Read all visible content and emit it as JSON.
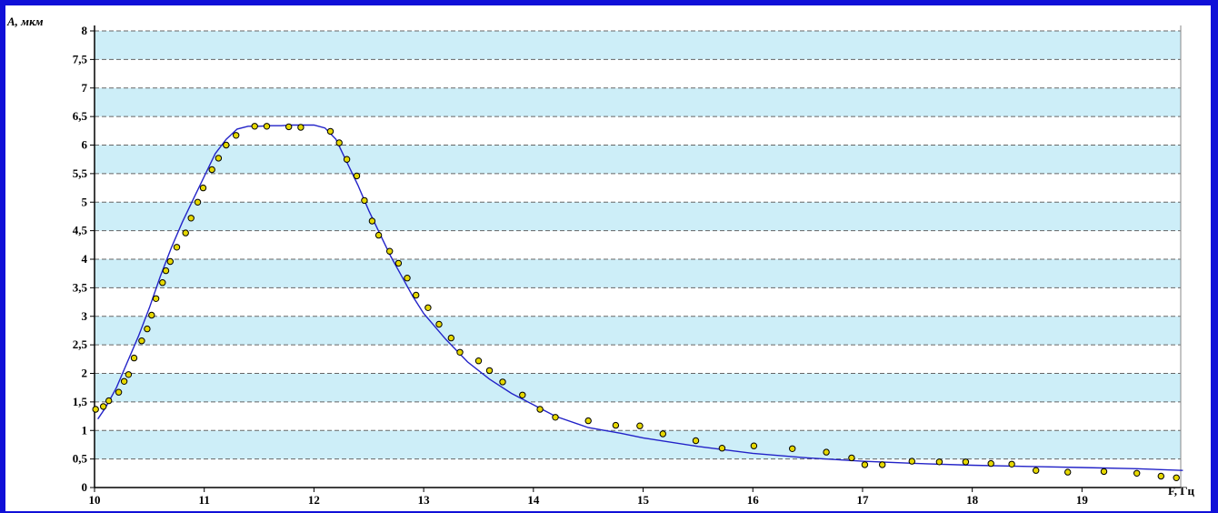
{
  "chart_data": {
    "type": "scatter",
    "title": "",
    "xlabel": "F, Гц",
    "ylabel": "A, мкм",
    "xlim": [
      10,
      19.9
    ],
    "ylim": [
      0,
      8
    ],
    "x_ticks": [
      "10",
      "11",
      "12",
      "13",
      "14",
      "15",
      "16",
      "17",
      "18",
      "19"
    ],
    "y_ticks": [
      "0",
      "0,5",
      "1",
      "1,5",
      "2",
      "2,5",
      "3",
      "3,5",
      "4",
      "4,5",
      "5",
      "5,5",
      "6",
      "6,5",
      "7",
      "7,5",
      "8"
    ],
    "grid": true,
    "colors": {
      "band": "#cdeef8",
      "curve": "#2323c8",
      "marker_fill": "#e6d800",
      "marker_edge": "#000000",
      "frame": "#1010d8"
    },
    "series": [
      {
        "kind": "points",
        "x": [
          10.01,
          10.08,
          10.13,
          10.22,
          10.27,
          10.31,
          10.36,
          10.43,
          10.48,
          10.52,
          10.56,
          10.62,
          10.65,
          10.69,
          10.75,
          10.83,
          10.88,
          10.94,
          10.99,
          11.07,
          11.13,
          11.2,
          11.29,
          11.46,
          11.57,
          11.77,
          11.88,
          12.15,
          12.23,
          12.3,
          12.39,
          12.46,
          12.53,
          12.59,
          12.69,
          12.77,
          12.85,
          12.93,
          13.04,
          13.14,
          13.25,
          13.33,
          13.5,
          13.6,
          13.72,
          13.9,
          14.06,
          14.2,
          14.5,
          14.75,
          14.97,
          15.18,
          15.48,
          15.72,
          16.01,
          16.36,
          16.67,
          16.9,
          17.02,
          17.18,
          17.45,
          17.7,
          17.94,
          18.17,
          18.36,
          18.58,
          18.87,
          19.2,
          19.5,
          19.72,
          19.86
        ],
        "y": [
          1.37,
          1.42,
          1.52,
          1.67,
          1.86,
          1.98,
          2.27,
          2.57,
          2.78,
          3.02,
          3.31,
          3.59,
          3.8,
          3.96,
          4.21,
          4.46,
          4.72,
          5.0,
          5.25,
          5.57,
          5.77,
          6.0,
          6.17,
          6.33,
          6.33,
          6.32,
          6.31,
          6.24,
          6.04,
          5.75,
          5.46,
          5.03,
          4.67,
          4.42,
          4.14,
          3.93,
          3.67,
          3.37,
          3.15,
          2.86,
          2.62,
          2.37,
          2.22,
          2.05,
          1.85,
          1.62,
          1.37,
          1.23,
          1.17,
          1.09,
          1.08,
          0.94,
          0.82,
          0.69,
          0.73,
          0.68,
          0.62,
          0.52,
          0.4,
          0.4,
          0.46,
          0.45,
          0.45,
          0.42,
          0.41,
          0.3,
          0.27,
          0.28,
          0.25,
          0.2,
          0.17
        ]
      },
      {
        "kind": "line",
        "x": [
          10.03,
          10.1,
          10.2,
          10.3,
          10.4,
          10.5,
          10.6,
          10.7,
          10.8,
          10.9,
          11.0,
          11.1,
          11.2,
          11.3,
          11.4,
          11.5,
          11.6,
          11.7,
          11.8,
          11.9,
          12.0,
          12.1,
          12.2,
          12.3,
          12.4,
          12.5,
          12.6,
          12.7,
          12.8,
          12.9,
          13.0,
          13.2,
          13.4,
          13.6,
          13.8,
          14.0,
          14.2,
          14.5,
          14.8,
          15.0,
          15.5,
          16.0,
          16.5,
          17.0,
          17.5,
          18.0,
          18.5,
          19.0,
          19.5,
          19.92
        ],
        "y": [
          1.2,
          1.4,
          1.75,
          2.2,
          2.65,
          3.15,
          3.7,
          4.2,
          4.65,
          5.05,
          5.45,
          5.85,
          6.1,
          6.28,
          6.33,
          6.33,
          6.34,
          6.34,
          6.35,
          6.35,
          6.35,
          6.3,
          6.1,
          5.7,
          5.3,
          4.85,
          4.45,
          4.05,
          3.7,
          3.35,
          3.05,
          2.6,
          2.2,
          1.9,
          1.65,
          1.45,
          1.25,
          1.05,
          0.95,
          0.87,
          0.72,
          0.6,
          0.52,
          0.46,
          0.42,
          0.39,
          0.37,
          0.35,
          0.33,
          0.3
        ]
      }
    ]
  }
}
